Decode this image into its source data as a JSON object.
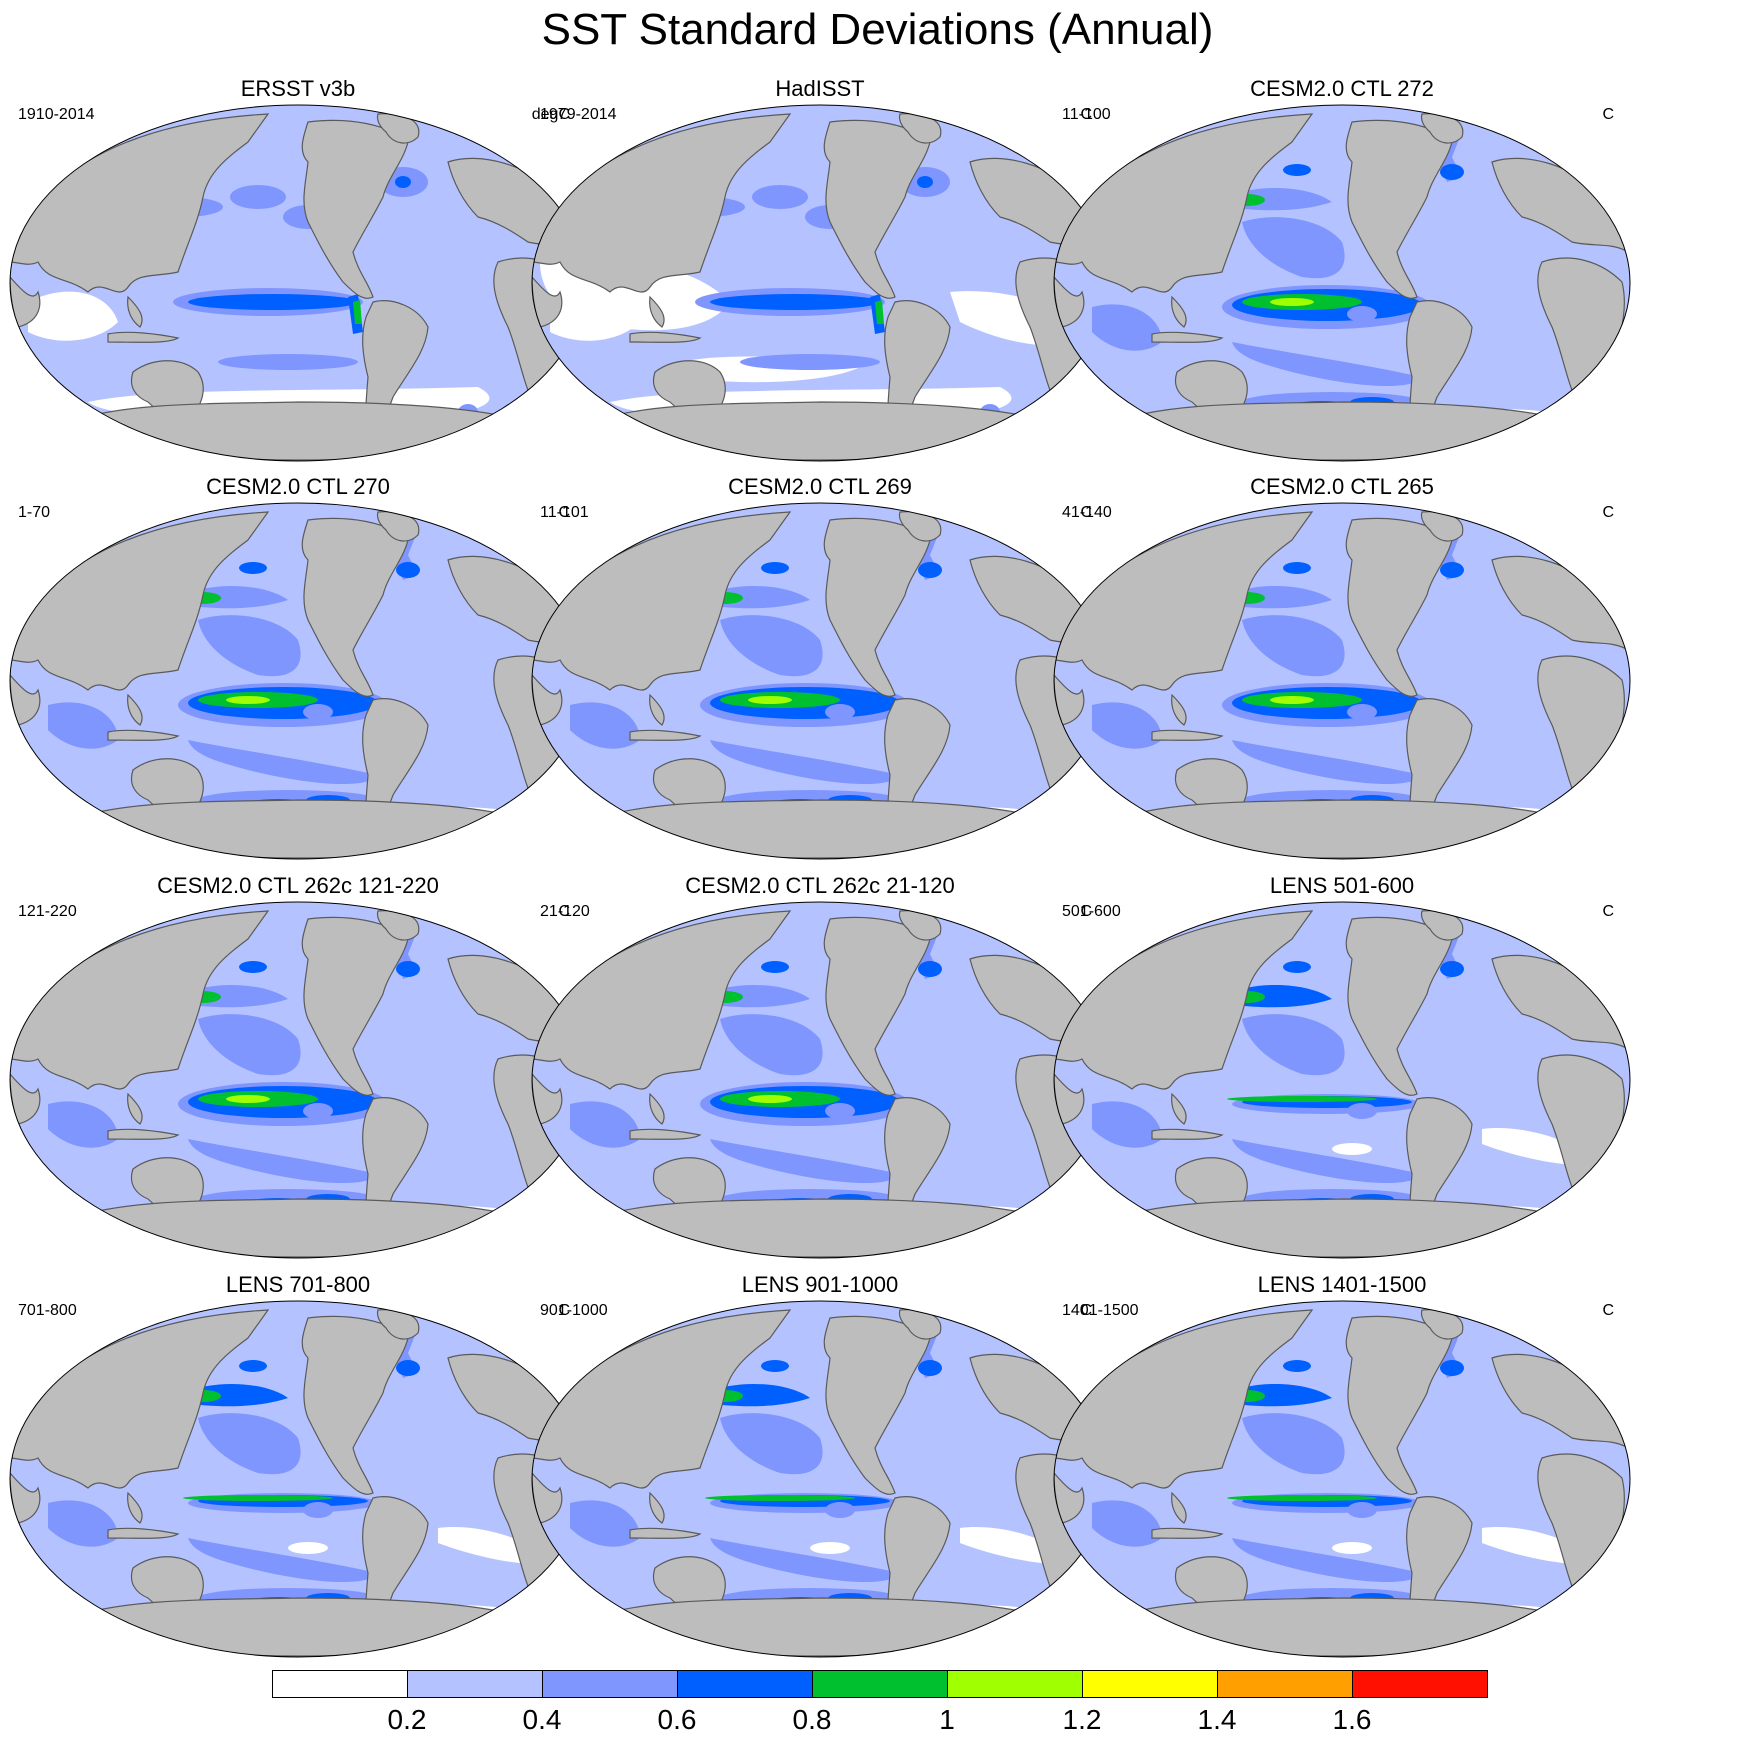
{
  "title": "SST Standard Deviations (Annual)",
  "colors": {
    "land": "#bdbdbd",
    "coast": "#5a5a5a",
    "levels": [
      "#ffffff",
      "#b4c3ff",
      "#8096ff",
      "#0060ff",
      "#00c030",
      "#a0ff00",
      "#ffff00",
      "#ffa000",
      "#ff1000"
    ]
  },
  "colorbar": {
    "labels": [
      "0.2",
      "0.4",
      "0.6",
      "0.8",
      "1",
      "1.2",
      "1.4",
      "1.6"
    ]
  },
  "panels": [
    {
      "title": "ERSST v3b",
      "left": "1910-2014",
      "right": "degC",
      "style": "obs1"
    },
    {
      "title": "HadISST",
      "left": "1979-2014",
      "right": "C",
      "style": "obs2"
    },
    {
      "title": "CESM2.0 CTL 272",
      "left": "11-100",
      "right": "C",
      "style": "model"
    },
    {
      "title": "CESM2.0 CTL 270",
      "left": "1-70",
      "right": "C",
      "style": "model"
    },
    {
      "title": "CESM2.0 CTL 269",
      "left": "11-101",
      "right": "C",
      "style": "model"
    },
    {
      "title": "CESM2.0 CTL 265",
      "left": "41-140",
      "right": "C",
      "style": "model"
    },
    {
      "title": "CESM2.0 CTL 262c 121-220",
      "left": "121-220",
      "right": "C",
      "style": "model"
    },
    {
      "title": "CESM2.0 CTL 262c 21-120",
      "left": "21-120",
      "right": "C",
      "style": "model"
    },
    {
      "title": "LENS 501-600",
      "left": "501-600",
      "right": "C",
      "style": "lens"
    },
    {
      "title": "LENS 701-800",
      "left": "701-800",
      "right": "C",
      "style": "lens"
    },
    {
      "title": "LENS 901-1000",
      "left": "901-1000",
      "right": "C",
      "style": "lens"
    },
    {
      "title": "LENS 1401-1500",
      "left": "1401-1500",
      "right": "C",
      "style": "lens"
    }
  ]
}
